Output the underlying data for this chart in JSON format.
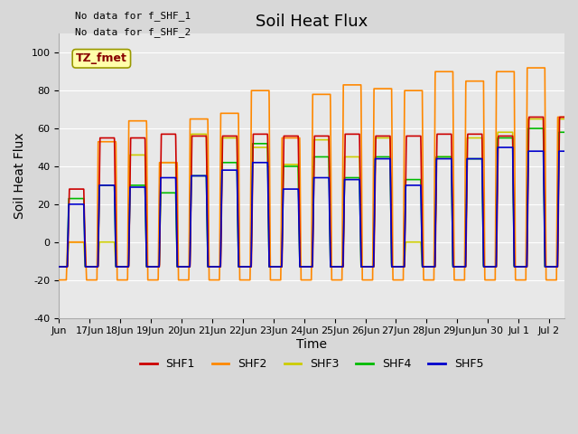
{
  "title": "Soil Heat Flux",
  "ylabel": "Soil Heat Flux",
  "xlabel": "Time",
  "ylim": [
    -40,
    110
  ],
  "yticks": [
    -40,
    -20,
    0,
    20,
    40,
    60,
    80,
    100
  ],
  "bg_color": "#d8d8d8",
  "plot_bg": "#e8e8e8",
  "title_fontsize": 13,
  "axis_label_fontsize": 10,
  "tick_fontsize": 8,
  "legend_labels": [
    "SHF1",
    "SHF2",
    "SHF3",
    "SHF4",
    "SHF5"
  ],
  "legend_colors": [
    "#cc0000",
    "#ff8800",
    "#cccc00",
    "#00bb00",
    "#0000cc"
  ],
  "no_data_lines": [
    "No data for f_SHF_1",
    "No data for f_SHF_2"
  ],
  "tz_label": "TZ_fmet",
  "tz_bg": "#ffffaa",
  "tz_border": "#999900",
  "tz_fg": "#880000",
  "xmin": 0,
  "xmax": 16.5,
  "xtick_pos": [
    0,
    1,
    2,
    3,
    4,
    5,
    6,
    7,
    8,
    9,
    10,
    11,
    12,
    13,
    14,
    15,
    16
  ],
  "xtick_labels": [
    "Jun",
    "17Jun",
    "18Jun",
    "19Jun",
    "20Jun",
    "21Jun",
    "22Jun",
    "23Jun",
    "24Jun",
    "25Jun",
    "26Jun",
    "27Jun",
    "28Jun",
    "29Jun",
    "Jun 30",
    "Jul 1",
    "Jul 2"
  ],
  "peak_shf1": [
    28,
    55,
    55,
    57,
    56,
    56,
    57,
    56,
    56,
    57,
    56,
    56,
    57,
    57,
    56,
    66,
    66
  ],
  "peak_shf2": [
    0,
    53,
    64,
    42,
    65,
    68,
    80,
    55,
    78,
    83,
    81,
    80,
    90,
    85,
    90,
    92,
    66
  ],
  "peak_shf3": [
    0,
    0,
    46,
    42,
    57,
    55,
    50,
    41,
    54,
    45,
    55,
    0,
    45,
    55,
    58,
    65,
    65
  ],
  "peak_shf4": [
    23,
    30,
    30,
    26,
    35,
    42,
    52,
    40,
    45,
    34,
    45,
    33,
    45,
    44,
    55,
    60,
    58
  ],
  "peak_shf5": [
    20,
    30,
    29,
    34,
    35,
    38,
    42,
    28,
    34,
    33,
    44,
    30,
    44,
    44,
    50,
    48,
    48
  ],
  "night_vals": [
    -13,
    -20,
    -13,
    -13,
    -13
  ]
}
